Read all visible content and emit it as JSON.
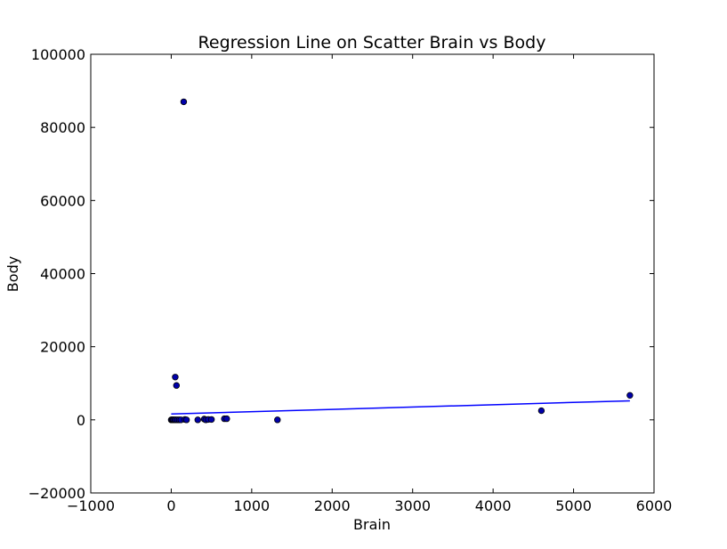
{
  "chart_data": {
    "type": "scatter",
    "title": "Regression Line on Scatter Brain vs Body",
    "xlabel": "Brain",
    "ylabel": "Body",
    "xlim": [
      -1000,
      6000
    ],
    "ylim": [
      -20000,
      100000
    ],
    "xticks": [
      -1000,
      0,
      1000,
      2000,
      3000,
      4000,
      5000,
      6000
    ],
    "yticks": [
      -20000,
      0,
      20000,
      40000,
      60000,
      80000,
      100000
    ],
    "xtick_labels": [
      "−1000",
      "0",
      "1000",
      "2000",
      "3000",
      "4000",
      "5000",
      "6000"
    ],
    "ytick_labels": [
      "−20000",
      "0",
      "20000",
      "40000",
      "60000",
      "80000",
      "100000"
    ],
    "grid": false,
    "marker_color": "#0000aa",
    "line_color": "#0000ff",
    "points": [
      {
        "x": 155,
        "y": 87000
      },
      {
        "x": 50,
        "y": 11700
      },
      {
        "x": 65,
        "y": 9400
      },
      {
        "x": 0,
        "y": 0
      },
      {
        "x": 10,
        "y": 0
      },
      {
        "x": 20,
        "y": 0
      },
      {
        "x": 30,
        "y": 0
      },
      {
        "x": 45,
        "y": 0
      },
      {
        "x": 60,
        "y": 0
      },
      {
        "x": 80,
        "y": 0
      },
      {
        "x": 100,
        "y": 0
      },
      {
        "x": 120,
        "y": 0
      },
      {
        "x": 170,
        "y": 100
      },
      {
        "x": 190,
        "y": 0
      },
      {
        "x": 330,
        "y": 0
      },
      {
        "x": 410,
        "y": 200
      },
      {
        "x": 430,
        "y": 0
      },
      {
        "x": 460,
        "y": 100
      },
      {
        "x": 500,
        "y": 100
      },
      {
        "x": 660,
        "y": 300
      },
      {
        "x": 690,
        "y": 300
      },
      {
        "x": 1320,
        "y": 0
      },
      {
        "x": 4600,
        "y": 2500
      },
      {
        "x": 5700,
        "y": 6700
      }
    ],
    "regression": {
      "x": [
        0,
        5700
      ],
      "y": [
        1600,
        5200
      ]
    }
  }
}
